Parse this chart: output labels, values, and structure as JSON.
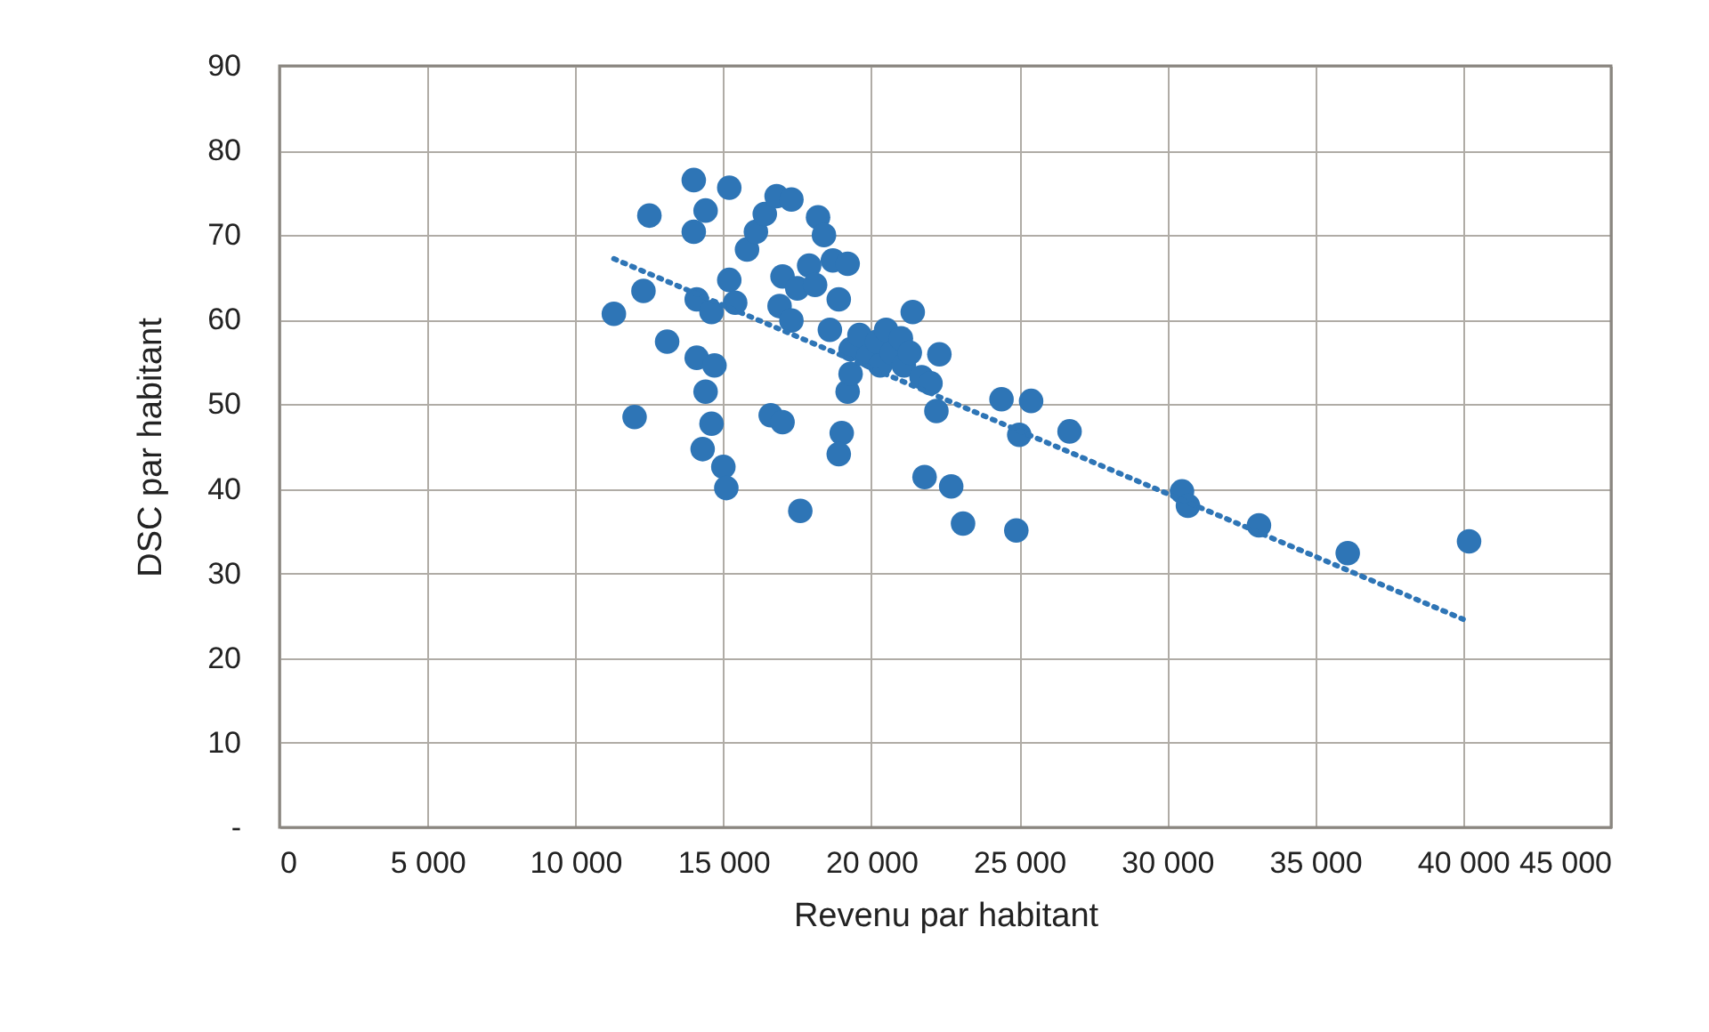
{
  "chart_data": {
    "type": "scatter",
    "xlabel": "Revenu par habitant",
    "ylabel": "DSC par habitant",
    "xlim": [
      0,
      45000
    ],
    "ylim": [
      0,
      90
    ],
    "xticks": [
      0,
      {
        "value": 5000,
        "label": "5 000"
      },
      {
        "value": 10000,
        "label": "10 000"
      },
      {
        "value": 15000,
        "label": "15 000"
      },
      {
        "value": 20000,
        "label": "20 000"
      },
      {
        "value": 25000,
        "label": "25 000"
      },
      {
        "value": 30000,
        "label": "30 000"
      },
      {
        "value": 35000,
        "label": "35 000"
      },
      {
        "value": 40000,
        "label": "40 000"
      },
      {
        "value": 45000,
        "label": "45 000"
      }
    ],
    "yticks": [
      {
        "value": 0,
        "label": "-"
      },
      10,
      20,
      30,
      40,
      50,
      60,
      70,
      80,
      90
    ],
    "grid": true,
    "marker": "circle",
    "series": [
      {
        "color": "#2e75b6",
        "x": [
          11300,
          12000,
          12500,
          12300,
          13100,
          14000,
          14000,
          14400,
          14100,
          14400,
          14300,
          14600,
          14700,
          15000,
          15100,
          14100,
          14600,
          15200,
          15200,
          15400,
          15800,
          16100,
          16400,
          16600,
          17000,
          16800,
          17300,
          17000,
          16900,
          17300,
          17500,
          17600,
          17900,
          18200,
          18100,
          18400,
          18600,
          18700,
          18900,
          19200,
          19000,
          18900,
          19200,
          19300,
          19300,
          19600,
          19900,
          20200,
          20300,
          20500,
          20700,
          21000,
          21100,
          21400,
          21300,
          21700,
          22000,
          22200,
          22300,
          21800,
          22700,
          23100,
          24400,
          24900,
          25000,
          25400,
          26700,
          30500,
          30700,
          33100,
          36100,
          40200
        ],
        "values": [
          60.7,
          48.5,
          72.3,
          63.4,
          57.4,
          76.5,
          70.4,
          72.9,
          55.5,
          51.5,
          44.7,
          47.7,
          54.6,
          42.6,
          40.1,
          62.4,
          60.9,
          75.6,
          64.7,
          62,
          68.3,
          70.4,
          72.5,
          48.7,
          47.9,
          74.6,
          74.2,
          65.1,
          61.6,
          59.9,
          63.7,
          37.4,
          66.4,
          72.1,
          64.1,
          70,
          58.8,
          67,
          62.4,
          66.6,
          46.6,
          44.1,
          51.5,
          53.6,
          56.5,
          58.2,
          55.7,
          57.4,
          54.6,
          58.8,
          56.1,
          57.8,
          54.6,
          60.9,
          56.1,
          53.2,
          52.5,
          49.2,
          55.9,
          41.4,
          40.3,
          35.9,
          50.6,
          35.1,
          46.4,
          50.4,
          46.8,
          39.7,
          38,
          35.7,
          32.4,
          33.8
        ]
      },
      {
        "type": "line",
        "color": "#2e75b6",
        "line_style": "dotted",
        "marker": "none",
        "x": [
          11300,
          40000
        ],
        "values": [
          67.2,
          24.6
        ]
      }
    ]
  }
}
